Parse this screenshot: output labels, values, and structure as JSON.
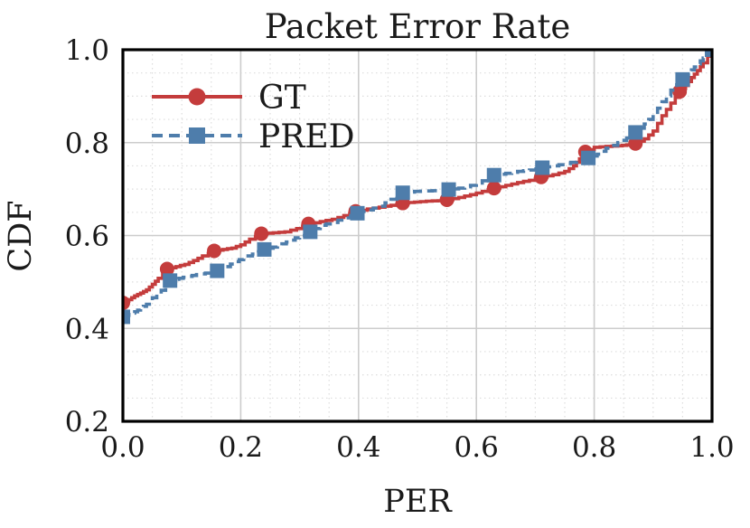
{
  "title": "Packet Error Rate",
  "axes": {
    "xlabel": "PER",
    "ylabel": "CDF",
    "x_tick_labels": [
      "0.0",
      "0.2",
      "0.4",
      "0.6",
      "0.8",
      "1.0"
    ],
    "x_tick_values": [
      0.0,
      0.2,
      0.4,
      0.6,
      0.8,
      1.0
    ],
    "y_tick_labels": [
      "0.2",
      "0.4",
      "0.6",
      "0.8",
      "1.0"
    ],
    "y_tick_values": [
      0.2,
      0.4,
      0.6,
      0.8,
      1.0
    ],
    "minor_tick_step": 0.05,
    "grid": "major-solid, minor-dotted"
  },
  "legend": {
    "position": "upper-left",
    "items": [
      {
        "label": "GT",
        "color": "#c43c3c",
        "line_style": "solid",
        "marker": "circle"
      },
      {
        "label": "PRED",
        "color": "#4e7dab",
        "line_style": "dashed",
        "marker": "square"
      }
    ]
  },
  "colors": {
    "gt": "#c43c3c",
    "pred": "#4e7dab",
    "grid_major": "#cccccc",
    "grid_minor": "#dddddd",
    "spine": "#000000",
    "text": "#1a1a1a",
    "background": "#ffffff"
  },
  "chart_data": {
    "type": "line",
    "subtype": "cdf-step",
    "title": "Packet Error Rate",
    "xlabel": "PER",
    "ylabel": "CDF",
    "xlim": [
      0.0,
      1.0
    ],
    "ylim": [
      0.2,
      1.0
    ],
    "legend_position": "upper-left",
    "grid": true,
    "series": [
      {
        "name": "GT",
        "color": "#c43c3c",
        "line_style": "solid",
        "marker": "circle",
        "x": [
          0.0,
          0.01,
          0.02,
          0.03,
          0.04,
          0.05,
          0.06,
          0.075,
          0.09,
          0.105,
          0.12,
          0.135,
          0.155,
          0.17,
          0.185,
          0.2,
          0.215,
          0.235,
          0.255,
          0.275,
          0.295,
          0.315,
          0.335,
          0.355,
          0.375,
          0.395,
          0.415,
          0.435,
          0.455,
          0.475,
          0.495,
          0.515,
          0.535,
          0.55,
          0.57,
          0.59,
          0.61,
          0.63,
          0.65,
          0.67,
          0.69,
          0.71,
          0.73,
          0.75,
          0.765,
          0.775,
          0.785,
          0.8,
          0.82,
          0.84,
          0.855,
          0.87,
          0.885,
          0.9,
          0.915,
          0.93,
          0.945,
          0.955,
          0.965,
          0.975,
          0.985,
          1.0
        ],
        "y": [
          0.455,
          0.462,
          0.47,
          0.476,
          0.483,
          0.495,
          0.508,
          0.528,
          0.533,
          0.538,
          0.546,
          0.556,
          0.567,
          0.57,
          0.573,
          0.58,
          0.592,
          0.604,
          0.606,
          0.608,
          0.615,
          0.625,
          0.63,
          0.635,
          0.643,
          0.652,
          0.657,
          0.661,
          0.665,
          0.67,
          0.672,
          0.674,
          0.675,
          0.677,
          0.682,
          0.688,
          0.695,
          0.702,
          0.708,
          0.714,
          0.719,
          0.726,
          0.731,
          0.738,
          0.75,
          0.765,
          0.78,
          0.79,
          0.792,
          0.793,
          0.795,
          0.798,
          0.808,
          0.825,
          0.858,
          0.885,
          0.91,
          0.923,
          0.94,
          0.955,
          0.972,
          1.0
        ],
        "marker_indices": [
          0,
          7,
          12,
          17,
          21,
          25,
          29,
          33,
          37,
          41,
          46,
          51,
          56,
          61
        ]
      },
      {
        "name": "PRED",
        "color": "#4e7dab",
        "line_style": "dashed",
        "marker": "square",
        "x": [
          0.0,
          0.01,
          0.02,
          0.03,
          0.04,
          0.05,
          0.065,
          0.08,
          0.095,
          0.11,
          0.125,
          0.14,
          0.16,
          0.175,
          0.19,
          0.205,
          0.22,
          0.24,
          0.255,
          0.27,
          0.285,
          0.3,
          0.318,
          0.335,
          0.355,
          0.375,
          0.398,
          0.415,
          0.435,
          0.455,
          0.475,
          0.495,
          0.515,
          0.535,
          0.553,
          0.57,
          0.59,
          0.61,
          0.63,
          0.65,
          0.67,
          0.69,
          0.712,
          0.73,
          0.75,
          0.77,
          0.79,
          0.805,
          0.82,
          0.84,
          0.855,
          0.87,
          0.885,
          0.9,
          0.915,
          0.93,
          0.95,
          0.96,
          0.97,
          0.98,
          0.99,
          1.0
        ],
        "y": [
          0.425,
          0.43,
          0.436,
          0.443,
          0.452,
          0.466,
          0.482,
          0.503,
          0.508,
          0.512,
          0.516,
          0.519,
          0.524,
          0.533,
          0.544,
          0.552,
          0.56,
          0.57,
          0.575,
          0.582,
          0.59,
          0.6,
          0.608,
          0.622,
          0.628,
          0.638,
          0.648,
          0.655,
          0.663,
          0.678,
          0.692,
          0.695,
          0.696,
          0.697,
          0.699,
          0.702,
          0.708,
          0.718,
          0.73,
          0.734,
          0.738,
          0.741,
          0.746,
          0.75,
          0.755,
          0.76,
          0.767,
          0.775,
          0.788,
          0.8,
          0.81,
          0.822,
          0.84,
          0.86,
          0.888,
          0.913,
          0.936,
          0.95,
          0.963,
          0.976,
          0.988,
          1.0
        ],
        "marker_indices": [
          0,
          7,
          12,
          17,
          22,
          26,
          30,
          34,
          38,
          42,
          46,
          51,
          56,
          61
        ]
      }
    ]
  }
}
